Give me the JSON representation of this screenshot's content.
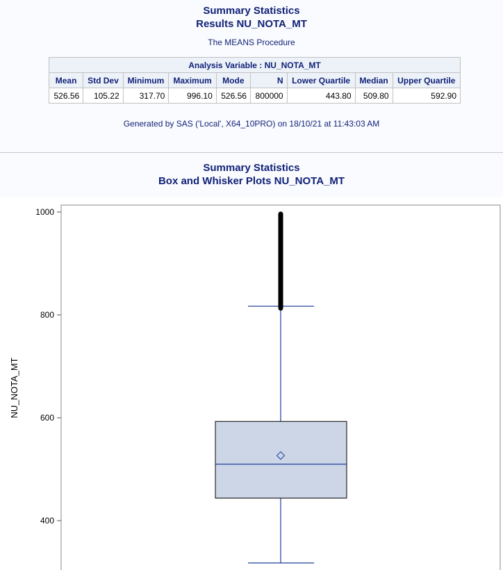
{
  "header": {
    "title_line1": "Summary Statistics",
    "title_line2": "Results NU_NOTA_MT",
    "procedure": "The MEANS Procedure"
  },
  "stats_table": {
    "caption": "Analysis Variable : NU_NOTA_MT",
    "columns": [
      "Mean",
      "Std Dev",
      "Minimum",
      "Maximum",
      "Mode",
      "N",
      "Lower Quartile",
      "Median",
      "Upper Quartile"
    ],
    "row": [
      "526.56",
      "105.22",
      "317.70",
      "996.10",
      "526.56",
      "800000",
      "443.80",
      "509.80",
      "592.90"
    ]
  },
  "footer": {
    "generated": "Generated by SAS ('Local', X64_10PRO) on 18/10/21 at 11:43:03 AM"
  },
  "plot_header": {
    "title_line1": "Summary Statistics",
    "title_line2": "Box and Whisker Plots NU_NOTA_MT"
  },
  "chart_data": {
    "type": "box",
    "ylabel": "NU_NOTA_MT",
    "yticks": [
      400,
      600,
      800,
      1000
    ],
    "ylim": [
      300,
      1000
    ],
    "box": {
      "min": 317.7,
      "q1": 443.8,
      "median": 509.8,
      "q3": 592.9,
      "mean": 526.56,
      "whisker_low": 317.7,
      "whisker_high": 817,
      "max": 996.1
    },
    "outlier_range": [
      813,
      996.1
    ],
    "grid": false,
    "colors": {
      "box_fill": "#ccd6e6",
      "box_edge": "#000000",
      "line": "#1f3d99",
      "outlier": "#000000",
      "mean_marker": "#3b5aad"
    }
  }
}
